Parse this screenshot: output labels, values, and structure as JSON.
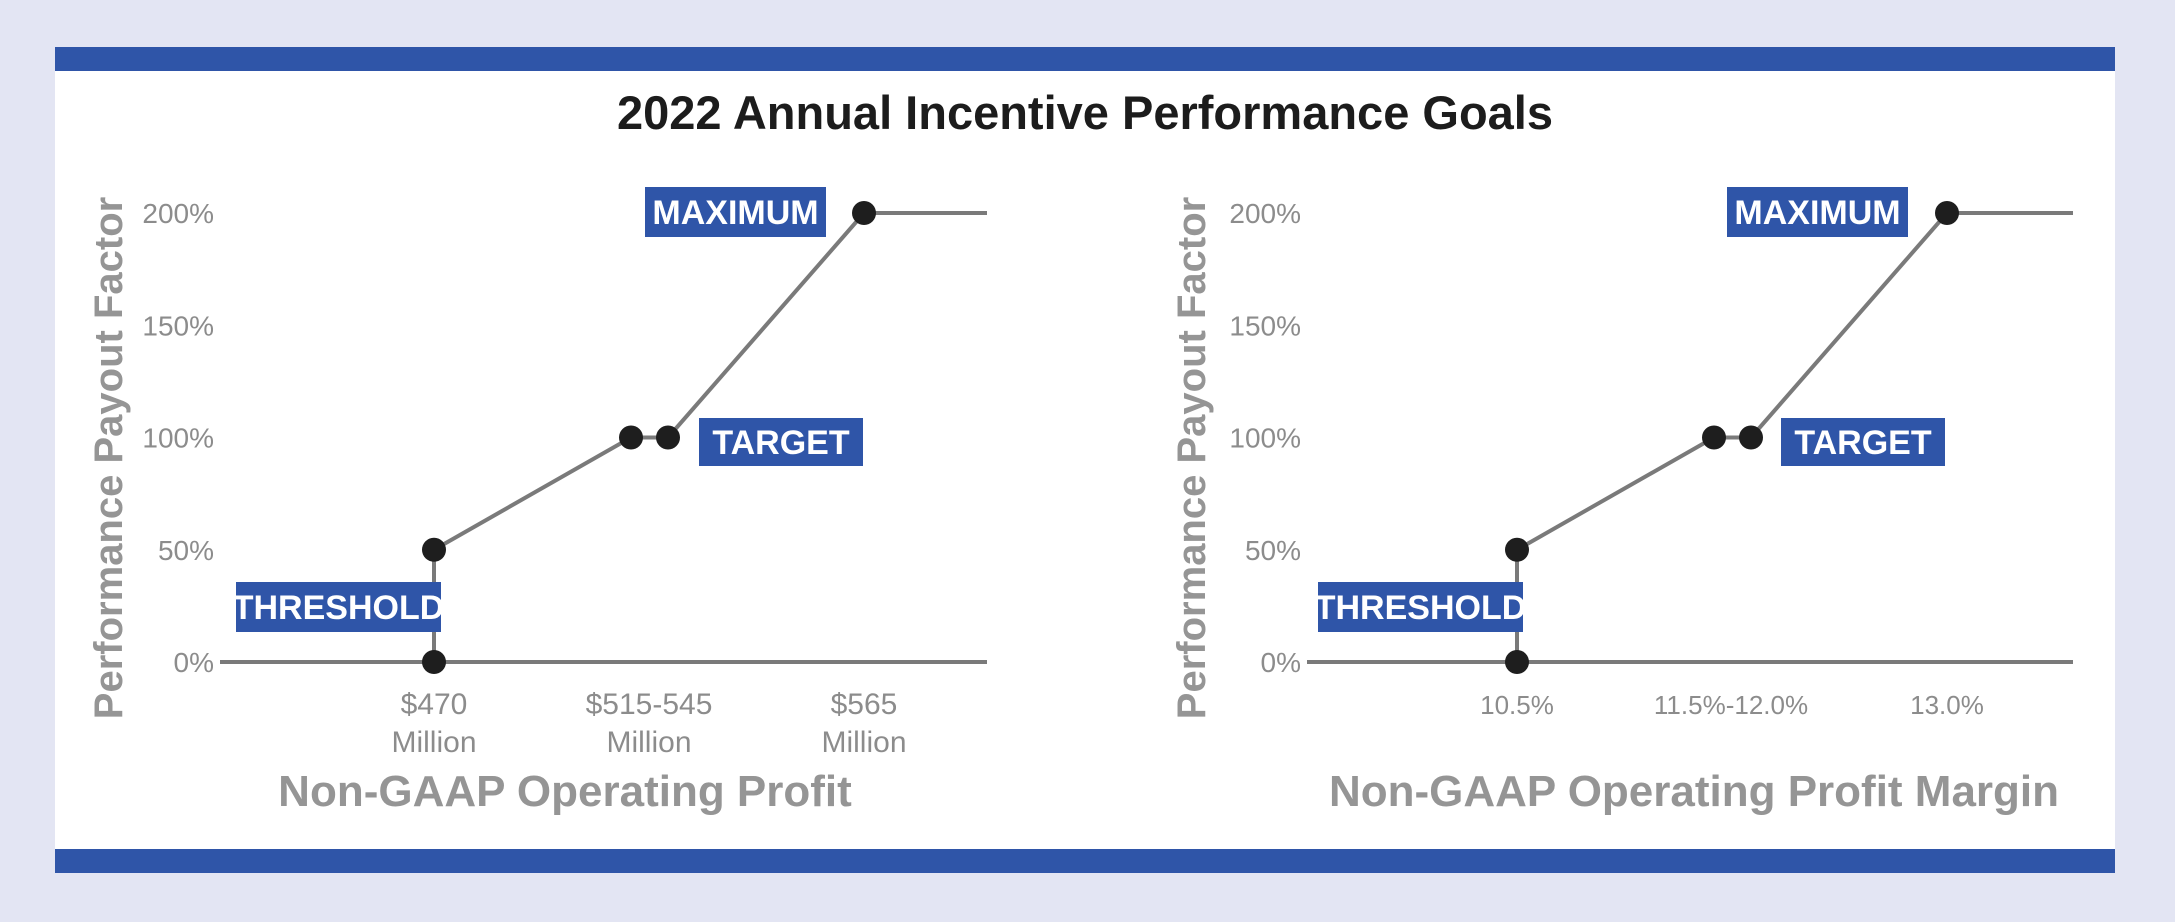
{
  "title": "2022 Annual Incentive Performance Goals",
  "colors": {
    "accent": "#2f55a8",
    "line": "#7a7a7a",
    "dot": "#1e1e1e",
    "text_gray": "#959595"
  },
  "chart_data": [
    {
      "type": "line",
      "ylabel": "Performance Payout Factor",
      "xlabel": "Non-GAAP Operating Profit",
      "yticks": [
        "0%",
        "50%",
        "100%",
        "150%",
        "200%"
      ],
      "ylim": [
        0,
        200
      ],
      "x_tick_labels": [
        {
          "lines": [
            "$470",
            "Million"
          ]
        },
        {
          "lines": [
            "$515-545",
            "Million"
          ]
        },
        {
          "lines": [
            "$565",
            "Million"
          ]
        }
      ],
      "points": [
        {
          "x": "$470 Million",
          "y": 0
        },
        {
          "x": "$470 Million",
          "y": 50
        },
        {
          "x": "$515 Million",
          "y": 100
        },
        {
          "x": "$545 Million",
          "y": 100
        },
        {
          "x": "$565 Million",
          "y": 200
        }
      ],
      "annotations": [
        "THRESHOLD",
        "TARGET",
        "MAXIMUM"
      ]
    },
    {
      "type": "line",
      "ylabel": "Performance Payout Factor",
      "xlabel": "Non-GAAP Operating Profit Margin",
      "yticks": [
        "0%",
        "50%",
        "100%",
        "150%",
        "200%"
      ],
      "ylim": [
        0,
        200
      ],
      "x_tick_labels": [
        {
          "lines": [
            "10.5%"
          ]
        },
        {
          "lines": [
            "11.5%-12.0%"
          ]
        },
        {
          "lines": [
            "13.0%"
          ]
        }
      ],
      "points": [
        {
          "x": "10.5%",
          "y": 0
        },
        {
          "x": "10.5%",
          "y": 50
        },
        {
          "x": "11.5%",
          "y": 100
        },
        {
          "x": "12.0%",
          "y": 100
        },
        {
          "x": "13.0%",
          "y": 200
        }
      ],
      "annotations": [
        "THRESHOLD",
        "TARGET",
        "MAXIMUM"
      ]
    }
  ]
}
